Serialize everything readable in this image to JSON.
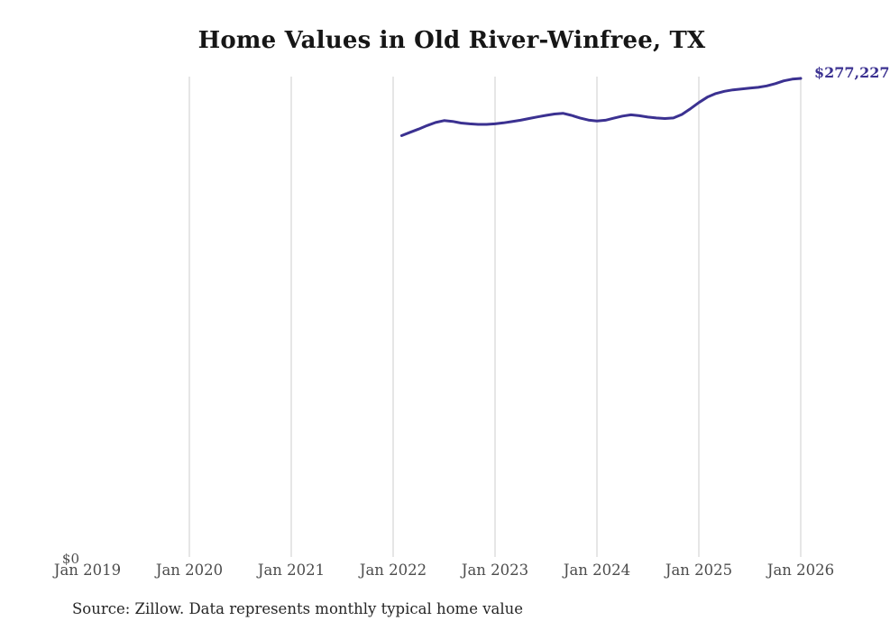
{
  "page": {
    "title": "Home Values in Old River-Winfree, TX",
    "source_note": "Source: Zillow. Data represents monthly typical home value"
  },
  "chart_data": {
    "type": "line",
    "title": "Home Values in Old River-Winfree, TX",
    "series_name": "Monthly typical home value",
    "x": [
      "2022-02",
      "2022-03",
      "2022-04",
      "2022-05",
      "2022-06",
      "2022-07",
      "2022-08",
      "2022-09",
      "2022-10",
      "2022-11",
      "2022-12",
      "2023-01",
      "2023-02",
      "2023-03",
      "2023-04",
      "2023-05",
      "2023-06",
      "2023-07",
      "2023-08",
      "2023-09",
      "2023-10",
      "2023-11",
      "2023-12",
      "2024-01",
      "2024-02",
      "2024-03",
      "2024-04",
      "2024-05",
      "2024-06",
      "2024-07",
      "2024-08",
      "2024-09",
      "2024-10",
      "2024-11",
      "2024-12",
      "2025-01",
      "2025-02",
      "2025-03",
      "2025-04",
      "2025-05",
      "2025-06",
      "2025-07",
      "2025-08",
      "2025-09",
      "2025-10",
      "2025-11",
      "2025-12",
      "2026-01"
    ],
    "values": [
      244200,
      246100,
      248000,
      250000,
      251800,
      252900,
      252400,
      251500,
      251000,
      250700,
      250700,
      251000,
      251600,
      252300,
      253100,
      254100,
      255000,
      255900,
      256700,
      257100,
      255900,
      254400,
      253200,
      252700,
      253100,
      254300,
      255500,
      256200,
      255700,
      254900,
      254400,
      254100,
      254400,
      256400,
      259700,
      263300,
      266400,
      268500,
      269800,
      270600,
      271100,
      271600,
      272100,
      272900,
      274200,
      275800,
      276800,
      277227
    ],
    "x_ticks": [
      {
        "label": "Jan 2019",
        "gridline": false
      },
      {
        "label": "Jan 2020",
        "gridline": true
      },
      {
        "label": "Jan 2021",
        "gridline": true
      },
      {
        "label": "Jan 2022",
        "gridline": true
      },
      {
        "label": "Jan 2023",
        "gridline": true
      },
      {
        "label": "Jan 2024",
        "gridline": true
      },
      {
        "label": "Jan 2025",
        "gridline": true
      },
      {
        "label": "Jan 2026",
        "gridline": true
      }
    ],
    "y_zero_label": "$0",
    "end_value_label": "$277,227",
    "xlim": [
      "Jan 2019",
      "Jan 2026"
    ],
    "ylim": [
      0,
      277227
    ],
    "grid": "vertical-only",
    "legend": "none",
    "line_color": "#3b3191",
    "gridline_color": "#cccccc"
  }
}
